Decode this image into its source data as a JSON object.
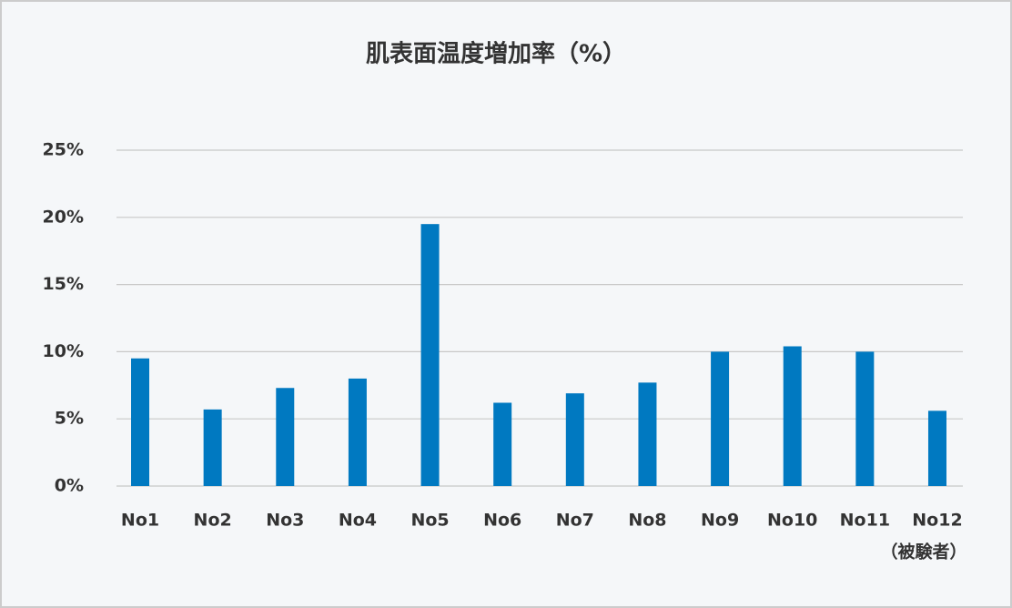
{
  "chart_data": {
    "type": "bar",
    "title": "肌表面温度増加率（%）",
    "x_label": "（被験者）",
    "categories": [
      "No1",
      "No2",
      "No3",
      "No4",
      "No5",
      "No6",
      "No7",
      "No8",
      "No9",
      "No10",
      "No11",
      "No12"
    ],
    "values": [
      9.5,
      5.7,
      7.3,
      8.0,
      19.5,
      6.2,
      6.9,
      7.7,
      10.0,
      10.4,
      10.0,
      5.6
    ],
    "color": "#0079c1",
    "ylim": [
      0,
      25
    ],
    "yticks": [
      {
        "value": 0,
        "label": "0%"
      },
      {
        "value": 5,
        "label": "5%"
      },
      {
        "value": 10,
        "label": "10%"
      },
      {
        "value": 15,
        "label": "15%"
      },
      {
        "value": 20,
        "label": "20%"
      },
      {
        "value": 25,
        "label": "25%"
      }
    ],
    "grid": true
  }
}
